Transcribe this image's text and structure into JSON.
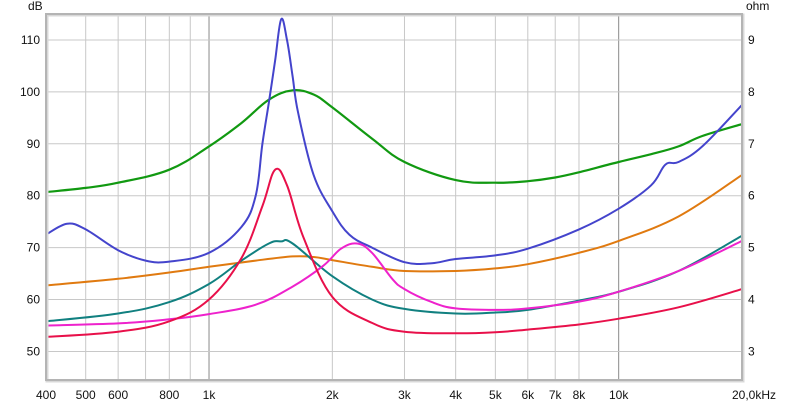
{
  "chart_data": {
    "type": "line",
    "title": "",
    "xlabel": "kHz",
    "ylabel": "dB",
    "y2label": "ohm",
    "xscale": "log",
    "xlim": [
      400,
      20000
    ],
    "ylim": [
      44.5,
      115
    ],
    "y2lim": [
      2.45,
      9.5
    ],
    "grid": true,
    "legend": null,
    "x_ticks": [
      {
        "value": 400,
        "label": "400"
      },
      {
        "value": 500,
        "label": "500"
      },
      {
        "value": 600,
        "label": "600"
      },
      {
        "value": 800,
        "label": "800"
      },
      {
        "value": 1000,
        "label": "1k"
      },
      {
        "value": 2000,
        "label": "2k"
      },
      {
        "value": 3000,
        "label": "3k"
      },
      {
        "value": 4000,
        "label": "4k"
      },
      {
        "value": 5000,
        "label": "5k"
      },
      {
        "value": 6000,
        "label": "6k"
      },
      {
        "value": 7000,
        "label": "7k"
      },
      {
        "value": 8000,
        "label": "8k"
      },
      {
        "value": 10000,
        "label": "10k"
      },
      {
        "value": 20000,
        "label": "20,0kHz"
      }
    ],
    "x_minor_grid": [
      700,
      900
    ],
    "y_ticks": [
      50,
      60,
      70,
      80,
      90,
      100,
      110
    ],
    "y2_ticks": [
      3,
      4,
      5,
      6,
      7,
      8,
      9
    ],
    "series": [
      {
        "name": "green",
        "color": "#119911",
        "width": 2.2,
        "x": [
          400,
          500,
          600,
          800,
          1000,
          1200,
          1400,
          1600,
          1800,
          2000,
          2500,
          3000,
          4000,
          5000,
          6000,
          7000,
          8000,
          10000,
          12000,
          14000,
          16000,
          20000
        ],
        "values": [
          80.7,
          81.5,
          82.5,
          85,
          89.5,
          94,
          98.5,
          100.3,
          99.5,
          97,
          91,
          86.5,
          83,
          82.5,
          82.8,
          83.5,
          84.5,
          86.5,
          88,
          89.5,
          91.5,
          93.8
        ]
      },
      {
        "name": "blue",
        "color": "#4444cc",
        "width": 2,
        "x": [
          400,
          450,
          500,
          600,
          700,
          800,
          1000,
          1200,
          1300,
          1350,
          1400,
          1450,
          1500,
          1550,
          1600,
          1650,
          1800,
          2000,
          2200,
          2500,
          3000,
          3500,
          4000,
          5000,
          6000,
          8000,
          10000,
          12000,
          13000,
          14000,
          16000,
          20000
        ],
        "values": [
          72.5,
          74.6,
          73.5,
          69.5,
          67.5,
          67.3,
          69,
          74,
          80,
          90,
          98,
          106,
          114,
          110,
          103,
          96,
          84,
          77,
          72.5,
          70,
          67.2,
          67,
          67.8,
          68.5,
          69.8,
          73.5,
          77.5,
          82,
          86,
          86.5,
          89.5,
          97.5
        ]
      },
      {
        "name": "orange",
        "color": "#e07a10",
        "width": 2,
        "x": [
          400,
          600,
          800,
          1000,
          1300,
          1600,
          1800,
          2000,
          2500,
          3000,
          4000,
          5000,
          6000,
          8000,
          10000,
          14000,
          20000
        ],
        "values": [
          62.7,
          64,
          65.2,
          66.3,
          67.5,
          68.3,
          68.2,
          67.6,
          66.3,
          65.5,
          65.5,
          66,
          66.8,
          69,
          71.3,
          76,
          84
        ]
      },
      {
        "name": "teal",
        "color": "#118080",
        "width": 2,
        "x": [
          400,
          600,
          800,
          1000,
          1200,
          1400,
          1500,
          1600,
          2000,
          2500,
          3000,
          4000,
          5000,
          6000,
          8000,
          10000,
          14000,
          20000
        ],
        "values": [
          55.8,
          57.3,
          59.5,
          63,
          67.5,
          70.8,
          71.2,
          70.8,
          64.5,
          60,
          58.2,
          57.3,
          57.5,
          58,
          59.8,
          61.5,
          65.5,
          72.3
        ]
      },
      {
        "name": "magenta",
        "color": "#ee22cc",
        "width": 2,
        "x": [
          400,
          600,
          800,
          1000,
          1300,
          1600,
          1900,
          2100,
          2300,
          2500,
          2800,
          3000,
          3500,
          4000,
          5000,
          6000,
          8000,
          10000,
          14000,
          20000
        ],
        "values": [
          55,
          55.4,
          56.2,
          57.2,
          59,
          62.5,
          66.5,
          69.8,
          70.8,
          69,
          64,
          62,
          59.5,
          58.3,
          58,
          58.3,
          59.6,
          61.5,
          65.5,
          71.3
        ]
      },
      {
        "name": "red",
        "color": "#e8104a",
        "width": 2,
        "x": [
          400,
          600,
          800,
          1000,
          1200,
          1350,
          1450,
          1550,
          1700,
          2000,
          2500,
          3000,
          4000,
          5000,
          6000,
          8000,
          10000,
          14000,
          20000
        ],
        "values": [
          52.8,
          53.8,
          55.8,
          60,
          68,
          78,
          85,
          82,
          72,
          60.5,
          55.5,
          53.8,
          53.5,
          53.7,
          54.2,
          55.2,
          56.3,
          58.5,
          62
        ]
      }
    ]
  },
  "axes": {
    "left_unit": "dB",
    "right_unit": "ohm"
  }
}
